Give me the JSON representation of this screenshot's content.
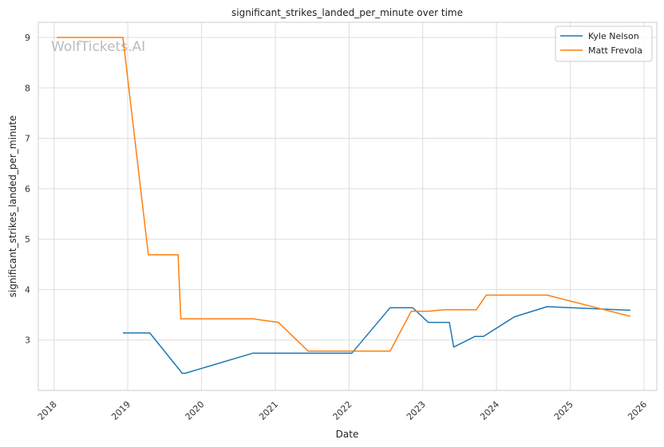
{
  "watermark": "WolfTickets.AI",
  "chart_data": {
    "type": "line",
    "title": "significant_strikes_landed_per_minute over time",
    "xlabel": "Date",
    "ylabel": "significant_strikes_landed_per_minute",
    "x_ticks": [
      "2018",
      "2019",
      "2020",
      "2021",
      "2022",
      "2023",
      "2024",
      "2025",
      "2026"
    ],
    "y_ticks": [
      3,
      4,
      5,
      6,
      7,
      8,
      9
    ],
    "xlim": [
      "2017-10-15",
      "2026-03-05"
    ],
    "ylim": [
      2.0,
      9.3
    ],
    "grid": true,
    "legend_position": "top-right",
    "series": [
      {
        "name": "Kyle Nelson",
        "color": "#1f77b4",
        "points": [
          [
            "2018-12-08",
            3.14
          ],
          [
            "2019-04-20",
            3.14
          ],
          [
            "2019-09-28",
            2.34
          ],
          [
            "2019-10-12",
            2.34
          ],
          [
            "2020-09-12",
            2.74
          ],
          [
            "2022-01-15",
            2.74
          ],
          [
            "2022-07-23",
            3.64
          ],
          [
            "2022-11-12",
            3.64
          ],
          [
            "2023-01-28",
            3.35
          ],
          [
            "2023-05-13",
            3.35
          ],
          [
            "2023-06-03",
            2.86
          ],
          [
            "2023-09-16",
            3.07
          ],
          [
            "2023-10-28",
            3.07
          ],
          [
            "2024-03-30",
            3.46
          ],
          [
            "2024-09-07",
            3.66
          ],
          [
            "2025-10-25",
            3.59
          ]
        ]
      },
      {
        "name": "Matt Frevola",
        "color": "#ff7f0e",
        "points": [
          [
            "2018-01-14",
            9.0
          ],
          [
            "2018-12-08",
            9.0
          ],
          [
            "2019-04-13",
            4.69
          ],
          [
            "2019-09-07",
            4.69
          ],
          [
            "2019-09-21",
            3.42
          ],
          [
            "2020-09-12",
            3.42
          ],
          [
            "2021-01-16",
            3.35
          ],
          [
            "2021-06-12",
            2.78
          ],
          [
            "2022-07-23",
            2.78
          ],
          [
            "2022-11-05",
            3.57
          ],
          [
            "2023-01-28",
            3.57
          ],
          [
            "2023-04-15",
            3.6
          ],
          [
            "2023-09-23",
            3.6
          ],
          [
            "2023-11-11",
            3.89
          ],
          [
            "2024-09-07",
            3.89
          ],
          [
            "2025-10-25",
            3.47
          ]
        ]
      }
    ]
  }
}
